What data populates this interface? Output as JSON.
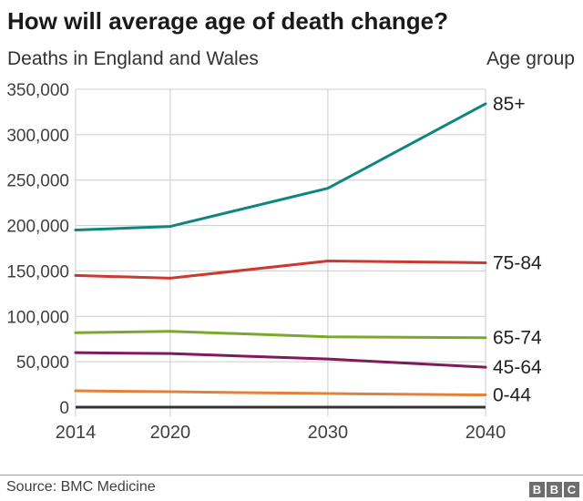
{
  "header": {
    "title": "How will average age of death change?",
    "subtitle_left": "Deaths in England and Wales",
    "subtitle_right": "Age group"
  },
  "chart_data": {
    "type": "line",
    "title": "How will average age of death change?",
    "ylabel": "Deaths in England and Wales",
    "xlabel": "",
    "x": [
      2014,
      2020,
      2030,
      2040
    ],
    "x_tick_labels": [
      "2014",
      "2020",
      "2030",
      "2040"
    ],
    "ylim": [
      0,
      350000
    ],
    "y_tick_values": [
      0,
      50000,
      100000,
      150000,
      200000,
      250000,
      300000,
      350000
    ],
    "y_tick_labels": [
      "0",
      "50,000",
      "100,000",
      "150,000",
      "200,000",
      "250,000",
      "300,000",
      "350,000"
    ],
    "grid": true,
    "legend_position": "labels-at-line-ends-right",
    "series": [
      {
        "name": "85+",
        "color": "#0d8680",
        "values": [
          195000,
          199000,
          241000,
          334000
        ]
      },
      {
        "name": "75-84",
        "color": "#cc392e",
        "values": [
          145000,
          142000,
          161000,
          159000
        ]
      },
      {
        "name": "65-74",
        "color": "#7ba82b",
        "values": [
          82000,
          83500,
          77500,
          76500
        ]
      },
      {
        "name": "45-64",
        "color": "#7e1a5d",
        "values": [
          60000,
          59000,
          53000,
          44000
        ]
      },
      {
        "name": "0-44",
        "color": "#e2803c",
        "values": [
          18000,
          17000,
          15000,
          13500
        ]
      }
    ]
  },
  "colors": {
    "grid": "#cccccc",
    "zero_axis": "#333333",
    "tick_text": "#404040",
    "series_label_text": "#222222",
    "title_text": "#1a1a1a"
  },
  "footer": {
    "source": "Source: BMC Medicine",
    "logo_letters": [
      "B",
      "B",
      "C"
    ]
  }
}
